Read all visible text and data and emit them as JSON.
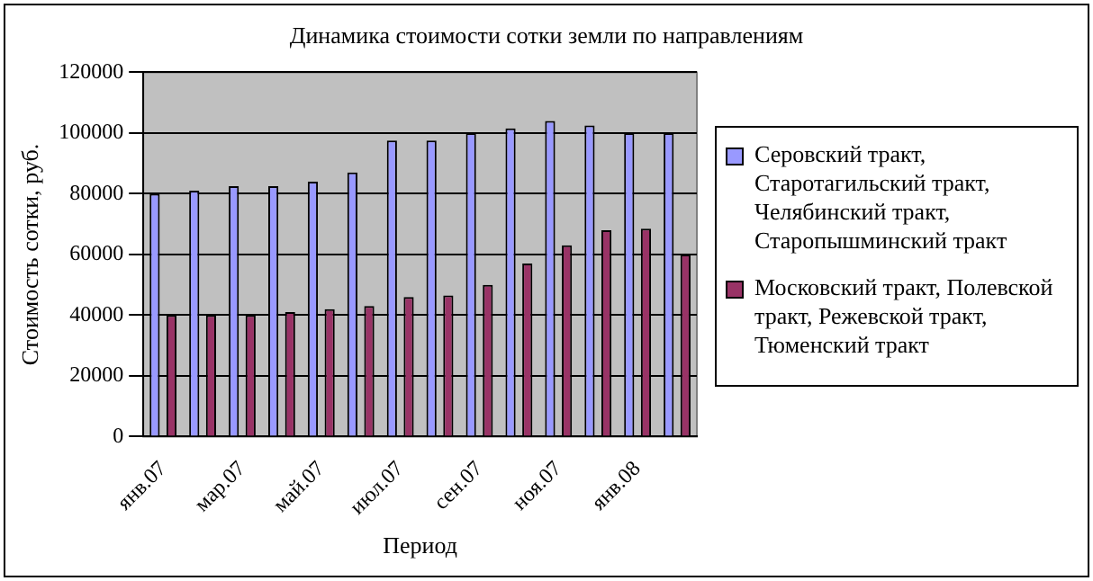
{
  "chart_data": {
    "type": "bar",
    "title": "Динамика стоимости сотки земли по направлениям",
    "xlabel": "Период",
    "ylabel": "Стоимость сотки, руб.",
    "categories": [
      "янв.07",
      null,
      "мар.07",
      null,
      "май.07",
      null,
      "июл.07",
      null,
      "сен.07",
      null,
      "ноя.07",
      null,
      "янв.08",
      null
    ],
    "series": [
      {
        "name": "Серовский тракт, Старотагильский тракт, Челябинский тракт, Старопышминский тракт",
        "color": "#9999ff",
        "values": [
          80000,
          81000,
          82500,
          82500,
          84000,
          87000,
          97500,
          97500,
          100000,
          101500,
          104000,
          102500,
          100000,
          100000
        ]
      },
      {
        "name": "Московский тракт, Полевской тракт, Режевской тракт, Тюменский тракт",
        "color": "#993366",
        "values": [
          40000,
          40000,
          40000,
          41000,
          42000,
          43000,
          46000,
          46500,
          50000,
          57000,
          63000,
          68000,
          68500,
          60000
        ]
      }
    ],
    "ylim": [
      0,
      120000
    ],
    "yticks": [
      0,
      20000,
      40000,
      60000,
      80000,
      100000,
      120000
    ],
    "grid": "y",
    "legend": "right"
  }
}
